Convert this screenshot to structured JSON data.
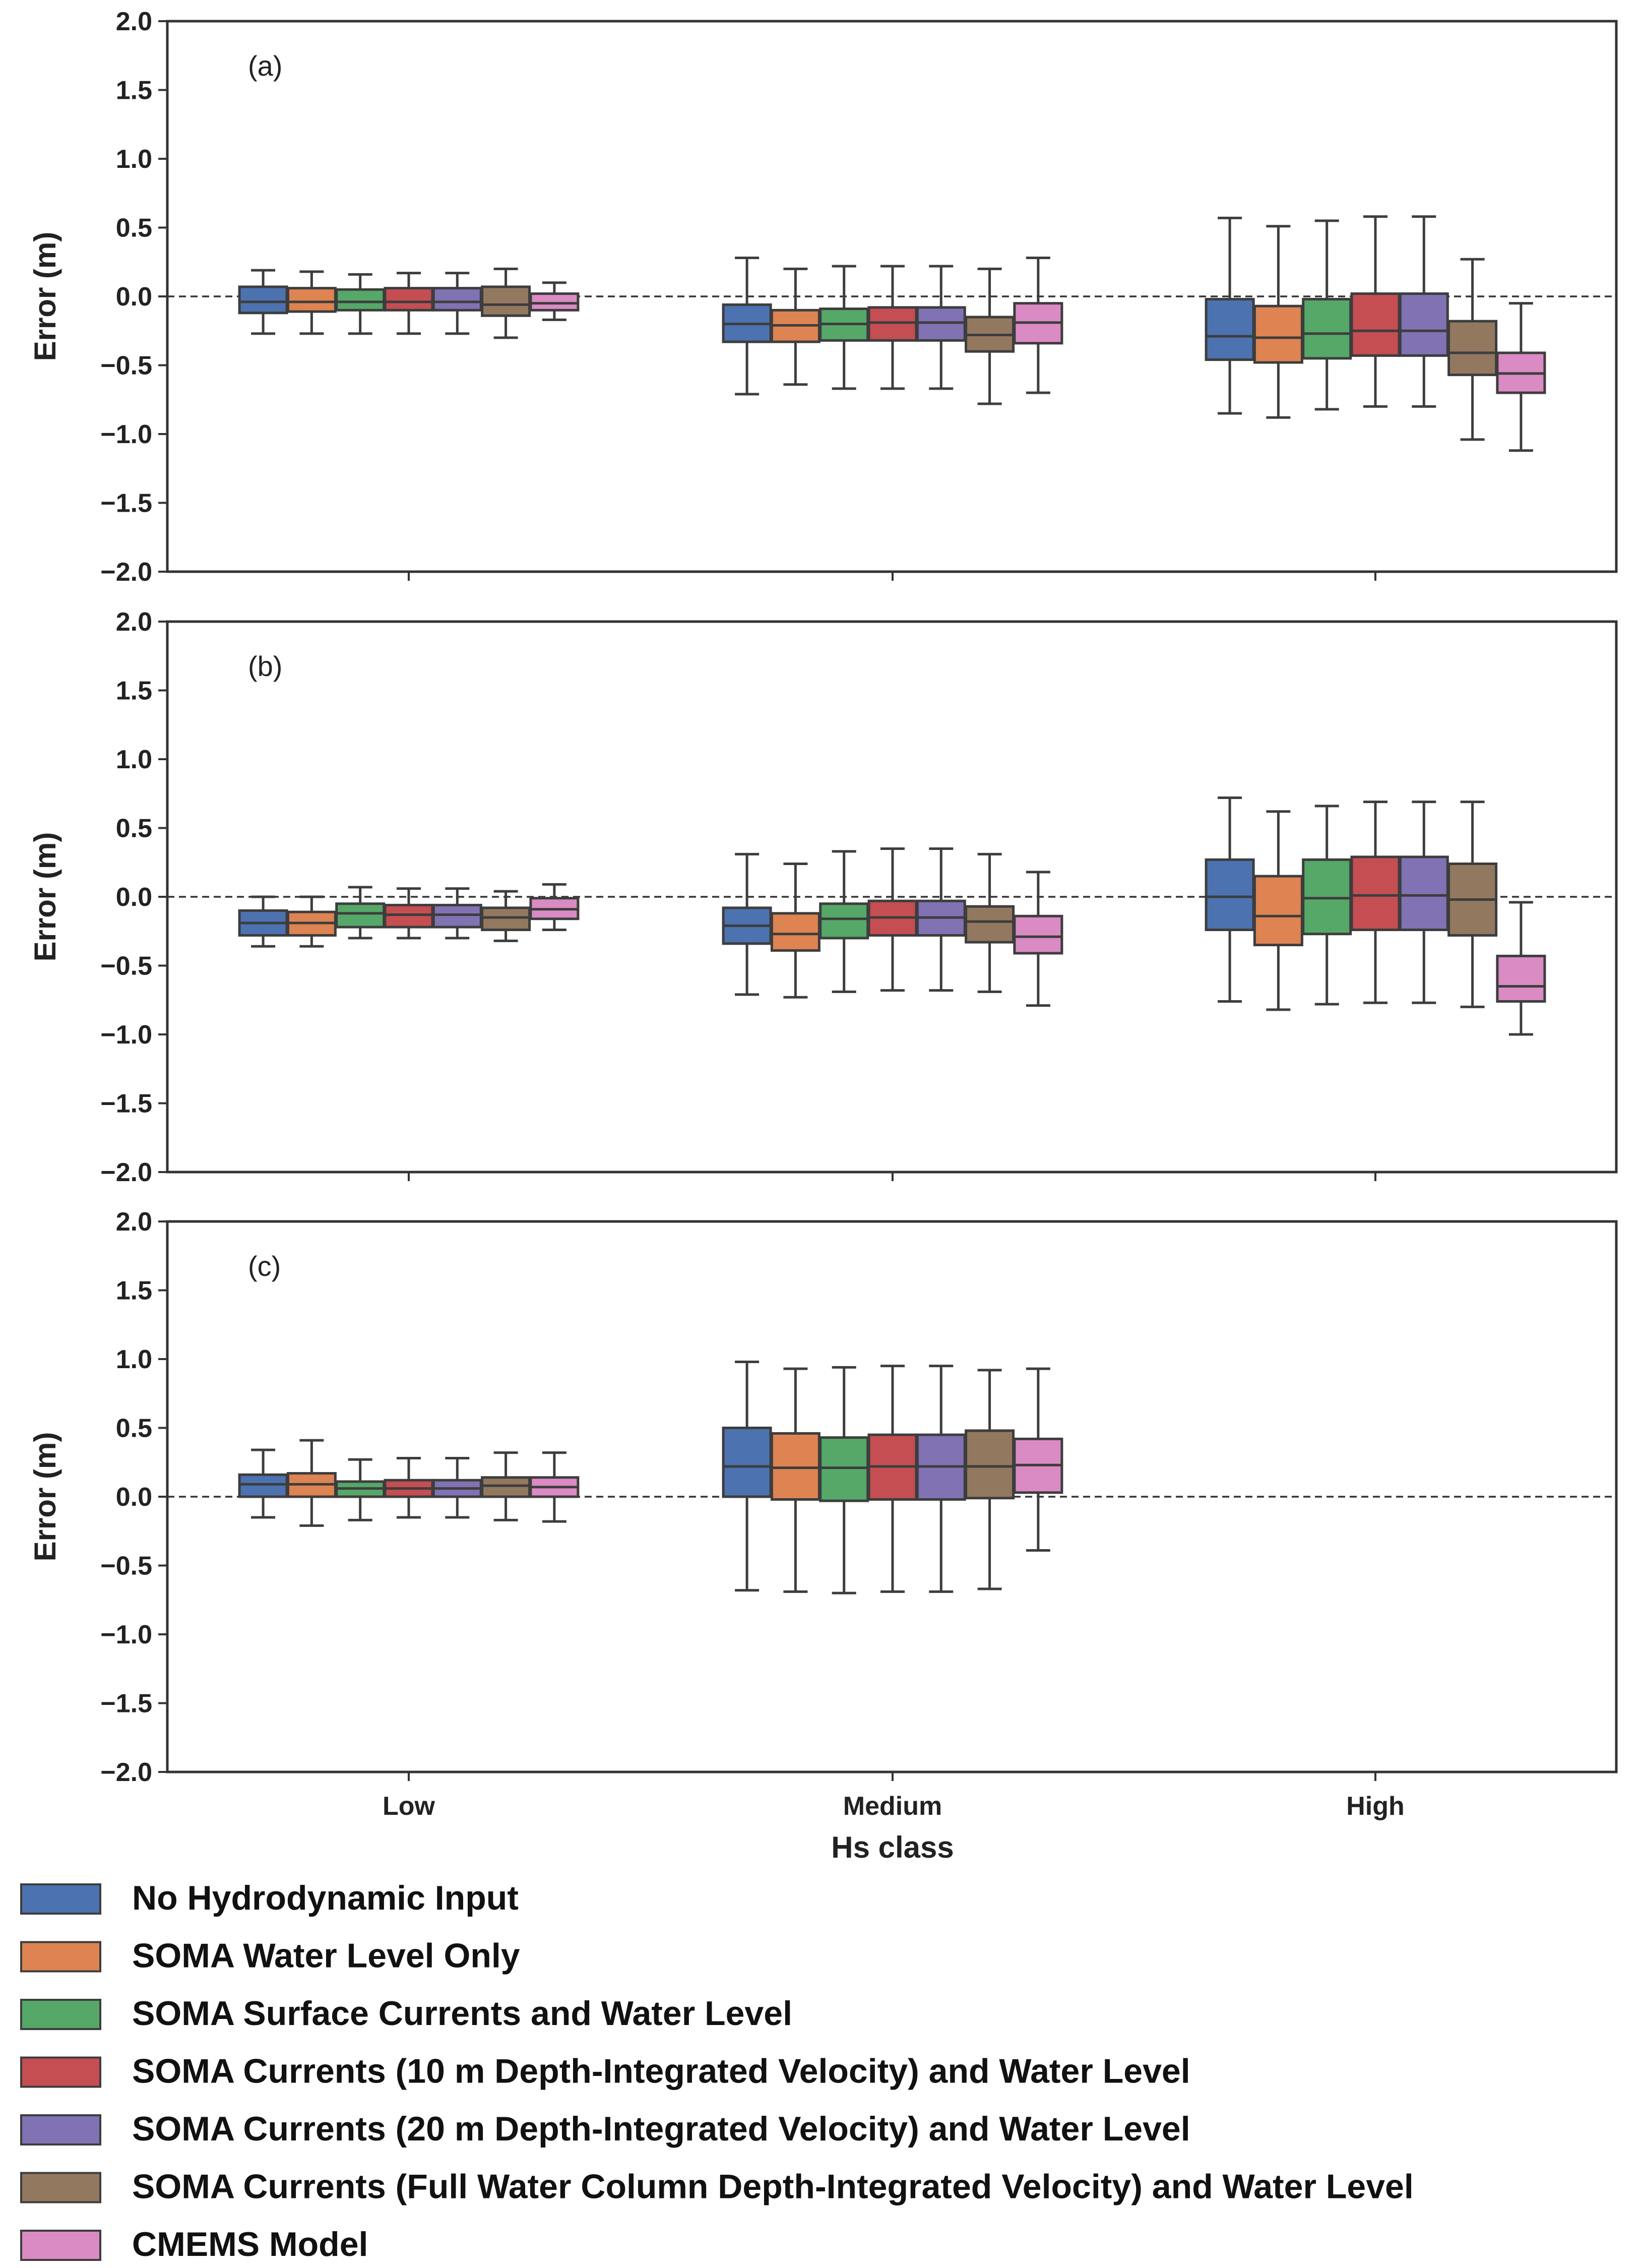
{
  "chart_data": {
    "type": "boxplot",
    "xlabel": "Hs class",
    "ylabel": "Error (m)",
    "ylim": [
      -2.0,
      2.0
    ],
    "yticks": [
      "2.0",
      "1.5",
      "1.0",
      "0.5",
      "0.0",
      "−0.5",
      "−1.0",
      "−1.5",
      "−2.0"
    ],
    "categories": [
      "Low",
      "Medium",
      "High"
    ],
    "reference_line": 0.0,
    "series": [
      {
        "name": "No Hydrodynamic Input",
        "color": "#4c72b0"
      },
      {
        "name": "SOMA Water Level Only",
        "color": "#dd8452"
      },
      {
        "name": "SOMA Surface Currents and Water Level",
        "color": "#55a868"
      },
      {
        "name": "SOMA Currents (10 m Depth-Integrated Velocity) and Water Level",
        "color": "#c44e52"
      },
      {
        "name": "SOMA Currents (20 m Depth-Integrated Velocity) and Water Level",
        "color": "#8172b3"
      },
      {
        "name": "SOMA Currents (Full Water Column Depth-Integrated Velocity) and Water Level",
        "color": "#937860"
      },
      {
        "name": "CMEMS Model",
        "color": "#da8bc3"
      }
    ],
    "panels": [
      {
        "label": "(a)",
        "boxes": [
          [
            {
              "whislo": -0.27,
              "q1": -0.12,
              "med": -0.04,
              "q3": 0.07,
              "whishi": 0.19
            },
            {
              "whislo": -0.27,
              "q1": -0.11,
              "med": -0.04,
              "q3": 0.06,
              "whishi": 0.18
            },
            {
              "whislo": -0.27,
              "q1": -0.1,
              "med": -0.04,
              "q3": 0.05,
              "whishi": 0.16
            },
            {
              "whislo": -0.27,
              "q1": -0.1,
              "med": -0.04,
              "q3": 0.06,
              "whishi": 0.17
            },
            {
              "whislo": -0.27,
              "q1": -0.1,
              "med": -0.04,
              "q3": 0.06,
              "whishi": 0.17
            },
            {
              "whislo": -0.3,
              "q1": -0.14,
              "med": -0.06,
              "q3": 0.07,
              "whishi": 0.2
            },
            {
              "whislo": -0.17,
              "q1": -0.1,
              "med": -0.05,
              "q3": 0.02,
              "whishi": 0.1
            }
          ],
          [
            {
              "whislo": -0.71,
              "q1": -0.33,
              "med": -0.2,
              "q3": -0.06,
              "whishi": 0.28
            },
            {
              "whislo": -0.64,
              "q1": -0.33,
              "med": -0.21,
              "q3": -0.1,
              "whishi": 0.2
            },
            {
              "whislo": -0.67,
              "q1": -0.32,
              "med": -0.2,
              "q3": -0.09,
              "whishi": 0.22
            },
            {
              "whislo": -0.67,
              "q1": -0.32,
              "med": -0.19,
              "q3": -0.08,
              "whishi": 0.22
            },
            {
              "whislo": -0.67,
              "q1": -0.32,
              "med": -0.19,
              "q3": -0.08,
              "whishi": 0.22
            },
            {
              "whislo": -0.78,
              "q1": -0.4,
              "med": -0.28,
              "q3": -0.15,
              "whishi": 0.2
            },
            {
              "whislo": -0.7,
              "q1": -0.34,
              "med": -0.19,
              "q3": -0.05,
              "whishi": 0.28
            }
          ],
          [
            {
              "whislo": -0.85,
              "q1": -0.46,
              "med": -0.29,
              "q3": -0.02,
              "whishi": 0.57
            },
            {
              "whislo": -0.88,
              "q1": -0.48,
              "med": -0.3,
              "q3": -0.07,
              "whishi": 0.51
            },
            {
              "whislo": -0.82,
              "q1": -0.45,
              "med": -0.27,
              "q3": -0.02,
              "whishi": 0.55
            },
            {
              "whislo": -0.8,
              "q1": -0.43,
              "med": -0.25,
              "q3": 0.02,
              "whishi": 0.58
            },
            {
              "whislo": -0.8,
              "q1": -0.43,
              "med": -0.25,
              "q3": 0.02,
              "whishi": 0.58
            },
            {
              "whislo": -1.04,
              "q1": -0.57,
              "med": -0.41,
              "q3": -0.18,
              "whishi": 0.27
            },
            {
              "whislo": -1.12,
              "q1": -0.7,
              "med": -0.56,
              "q3": -0.41,
              "whishi": -0.05
            }
          ]
        ]
      },
      {
        "label": "(b)",
        "boxes": [
          [
            {
              "whislo": -0.36,
              "q1": -0.28,
              "med": -0.19,
              "q3": -0.1,
              "whishi": 0.0
            },
            {
              "whislo": -0.36,
              "q1": -0.28,
              "med": -0.19,
              "q3": -0.11,
              "whishi": 0.0
            },
            {
              "whislo": -0.3,
              "q1": -0.22,
              "med": -0.12,
              "q3": -0.05,
              "whishi": 0.07
            },
            {
              "whislo": -0.3,
              "q1": -0.22,
              "med": -0.13,
              "q3": -0.06,
              "whishi": 0.06
            },
            {
              "whislo": -0.3,
              "q1": -0.22,
              "med": -0.13,
              "q3": -0.06,
              "whishi": 0.06
            },
            {
              "whislo": -0.32,
              "q1": -0.24,
              "med": -0.15,
              "q3": -0.08,
              "whishi": 0.04
            },
            {
              "whislo": -0.24,
              "q1": -0.16,
              "med": -0.09,
              "q3": -0.01,
              "whishi": 0.09
            }
          ],
          [
            {
              "whislo": -0.71,
              "q1": -0.34,
              "med": -0.21,
              "q3": -0.08,
              "whishi": 0.31
            },
            {
              "whislo": -0.73,
              "q1": -0.39,
              "med": -0.27,
              "q3": -0.12,
              "whishi": 0.24
            },
            {
              "whislo": -0.69,
              "q1": -0.3,
              "med": -0.16,
              "q3": -0.05,
              "whishi": 0.33
            },
            {
              "whislo": -0.68,
              "q1": -0.28,
              "med": -0.15,
              "q3": -0.03,
              "whishi": 0.35
            },
            {
              "whislo": -0.68,
              "q1": -0.28,
              "med": -0.15,
              "q3": -0.03,
              "whishi": 0.35
            },
            {
              "whislo": -0.69,
              "q1": -0.33,
              "med": -0.18,
              "q3": -0.07,
              "whishi": 0.31
            },
            {
              "whislo": -0.79,
              "q1": -0.41,
              "med": -0.29,
              "q3": -0.14,
              "whishi": 0.18
            }
          ],
          [
            {
              "whislo": -0.76,
              "q1": -0.24,
              "med": 0.0,
              "q3": 0.27,
              "whishi": 0.72
            },
            {
              "whislo": -0.82,
              "q1": -0.35,
              "med": -0.14,
              "q3": 0.15,
              "whishi": 0.62
            },
            {
              "whislo": -0.78,
              "q1": -0.27,
              "med": -0.01,
              "q3": 0.27,
              "whishi": 0.66
            },
            {
              "whislo": -0.77,
              "q1": -0.24,
              "med": 0.01,
              "q3": 0.29,
              "whishi": 0.69
            },
            {
              "whislo": -0.77,
              "q1": -0.24,
              "med": 0.01,
              "q3": 0.29,
              "whishi": 0.69
            },
            {
              "whislo": -0.8,
              "q1": -0.28,
              "med": -0.02,
              "q3": 0.24,
              "whishi": 0.69
            },
            {
              "whislo": -1.0,
              "q1": -0.76,
              "med": -0.65,
              "q3": -0.43,
              "whishi": -0.04
            }
          ]
        ]
      },
      {
        "label": "(c)",
        "boxes": [
          [
            {
              "whislo": -0.15,
              "q1": 0.0,
              "med": 0.09,
              "q3": 0.16,
              "whishi": 0.34
            },
            {
              "whislo": -0.21,
              "q1": 0.0,
              "med": 0.09,
              "q3": 0.17,
              "whishi": 0.41
            },
            {
              "whislo": -0.17,
              "q1": 0.0,
              "med": 0.06,
              "q3": 0.11,
              "whishi": 0.27
            },
            {
              "whislo": -0.15,
              "q1": 0.0,
              "med": 0.06,
              "q3": 0.12,
              "whishi": 0.28
            },
            {
              "whislo": -0.15,
              "q1": 0.0,
              "med": 0.06,
              "q3": 0.12,
              "whishi": 0.28
            },
            {
              "whislo": -0.17,
              "q1": 0.0,
              "med": 0.08,
              "q3": 0.14,
              "whishi": 0.32
            },
            {
              "whislo": -0.18,
              "q1": 0.0,
              "med": 0.07,
              "q3": 0.14,
              "whishi": 0.32
            }
          ],
          [
            {
              "whislo": -0.68,
              "q1": 0.0,
              "med": 0.22,
              "q3": 0.5,
              "whishi": 0.98
            },
            {
              "whislo": -0.69,
              "q1": -0.02,
              "med": 0.21,
              "q3": 0.46,
              "whishi": 0.93
            },
            {
              "whislo": -0.7,
              "q1": -0.03,
              "med": 0.21,
              "q3": 0.43,
              "whishi": 0.94
            },
            {
              "whislo": -0.69,
              "q1": -0.02,
              "med": 0.22,
              "q3": 0.45,
              "whishi": 0.95
            },
            {
              "whislo": -0.69,
              "q1": -0.02,
              "med": 0.22,
              "q3": 0.45,
              "whishi": 0.95
            },
            {
              "whislo": -0.67,
              "q1": -0.01,
              "med": 0.22,
              "q3": 0.48,
              "whishi": 0.92
            },
            {
              "whislo": -0.39,
              "q1": 0.03,
              "med": 0.23,
              "q3": 0.42,
              "whishi": 0.93
            }
          ],
          null
        ]
      }
    ]
  }
}
